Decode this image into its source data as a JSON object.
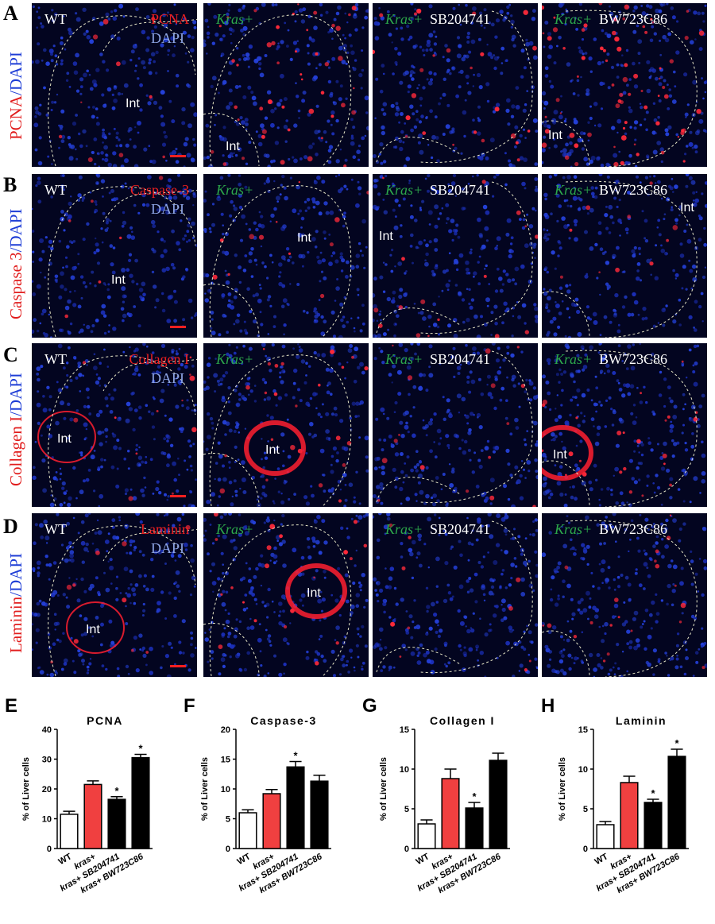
{
  "rows": [
    {
      "letter": "A",
      "side": {
        "marker": "PCNA",
        "sep": "/",
        "stain": "DAPI"
      },
      "panels": [
        {
          "green": "",
          "white": "WT",
          "marker": "PCNA",
          "dapi": "DAPI",
          "int": [
            "Int"
          ]
        },
        {
          "green": "Kras+",
          "white": "",
          "int": [
            "Int"
          ]
        },
        {
          "green": "Kras+",
          "white": "SB204741",
          "int": []
        },
        {
          "green": "Kras+",
          "white": "BW723C86",
          "int": [
            "Int"
          ]
        }
      ]
    },
    {
      "letter": "B",
      "side": {
        "marker": "Caspase 3",
        "sep": "/",
        "stain": "DAPI"
      },
      "panels": [
        {
          "green": "",
          "white": "WT",
          "marker": "Caspase-3",
          "dapi": "DAPI",
          "int": [
            "Int"
          ]
        },
        {
          "green": "Kras+",
          "white": "",
          "int": [
            "Int"
          ]
        },
        {
          "green": "Kras+",
          "white": "SB204741",
          "int": [
            "Int"
          ]
        },
        {
          "green": "Kras+",
          "white": "BW723C86",
          "int": [
            "Int"
          ]
        }
      ]
    },
    {
      "letter": "C",
      "side": {
        "marker": "Collagen I",
        "sep": "/",
        "stain": "DAPI"
      },
      "panels": [
        {
          "green": "",
          "white": "WT",
          "marker": "Collagen I",
          "dapi": "DAPI",
          "int": [
            "Int"
          ]
        },
        {
          "green": "Kras+",
          "white": "",
          "int": [
            "Int"
          ]
        },
        {
          "green": "Kras+",
          "white": "SB204741",
          "int": []
        },
        {
          "green": "Kras+",
          "white": "BW723C86",
          "int": [
            "Int"
          ]
        }
      ]
    },
    {
      "letter": "D",
      "side": {
        "marker": "Laminin",
        "sep": "/",
        "stain": "DAPI"
      },
      "panels": [
        {
          "green": "",
          "white": "WT",
          "marker": "Laminin",
          "dapi": "DAPI",
          "int": [
            "Int"
          ]
        },
        {
          "green": "Kras+",
          "white": "",
          "int": [
            "Int"
          ]
        },
        {
          "green": "Kras+",
          "white": "SB204741",
          "int": []
        },
        {
          "green": "Kras+",
          "white": "BW723C86",
          "int": []
        }
      ]
    }
  ],
  "chart_data": [
    {
      "letter": "E",
      "type": "bar",
      "title": "PCNA",
      "ylabel": "% of Liver cells",
      "categories": [
        "WT",
        "kras+",
        "kras+ SB204741",
        "kras+ BW723C86"
      ],
      "values": [
        11.5,
        21.5,
        16.5,
        30.5
      ],
      "errors": [
        1.0,
        1.2,
        0.9,
        1.1
      ],
      "significance": [
        "",
        "",
        "*",
        "*"
      ],
      "bar_colors": [
        "#ffffff",
        "#f04040",
        "#000000",
        "#000000"
      ],
      "ylim": [
        0,
        40
      ],
      "yticks": [
        0,
        10,
        20,
        30,
        40
      ]
    },
    {
      "letter": "F",
      "type": "bar",
      "title": "Caspase-3",
      "ylabel": "% of Liver cells",
      "categories": [
        "WT",
        "kras+",
        "kras+ SB204741",
        "kras+ BW723C86"
      ],
      "values": [
        6.0,
        9.2,
        13.7,
        11.3
      ],
      "errors": [
        0.5,
        0.7,
        0.9,
        1.0
      ],
      "significance": [
        "",
        "",
        "*",
        ""
      ],
      "bar_colors": [
        "#ffffff",
        "#f04040",
        "#000000",
        "#000000"
      ],
      "ylim": [
        0,
        20
      ],
      "yticks": [
        0,
        5,
        10,
        15,
        20
      ]
    },
    {
      "letter": "G",
      "type": "bar",
      "title": "Collagen I",
      "ylabel": "% of Liver cells",
      "categories": [
        "WT",
        "kras+",
        "kras+ SB204741",
        "kras+ BW723C86"
      ],
      "values": [
        3.1,
        8.8,
        5.1,
        11.1
      ],
      "errors": [
        0.5,
        1.2,
        0.7,
        0.9
      ],
      "significance": [
        "",
        "",
        "*",
        ""
      ],
      "bar_colors": [
        "#ffffff",
        "#f04040",
        "#000000",
        "#000000"
      ],
      "ylim": [
        0,
        15
      ],
      "yticks": [
        0,
        5,
        10,
        15
      ]
    },
    {
      "letter": "H",
      "type": "bar",
      "title": "Laminin",
      "ylabel": "% of Liver cells",
      "categories": [
        "WT",
        "kras+",
        "kras+ SB204741",
        "kras+ BW723C86"
      ],
      "values": [
        3.0,
        8.3,
        5.8,
        11.6
      ],
      "errors": [
        0.4,
        0.8,
        0.4,
        0.9
      ],
      "significance": [
        "",
        "",
        "*",
        "*"
      ],
      "bar_colors": [
        "#ffffff",
        "#f04040",
        "#000000",
        "#000000"
      ],
      "ylim": [
        0,
        15
      ],
      "yticks": [
        0,
        5,
        10,
        15
      ]
    }
  ]
}
